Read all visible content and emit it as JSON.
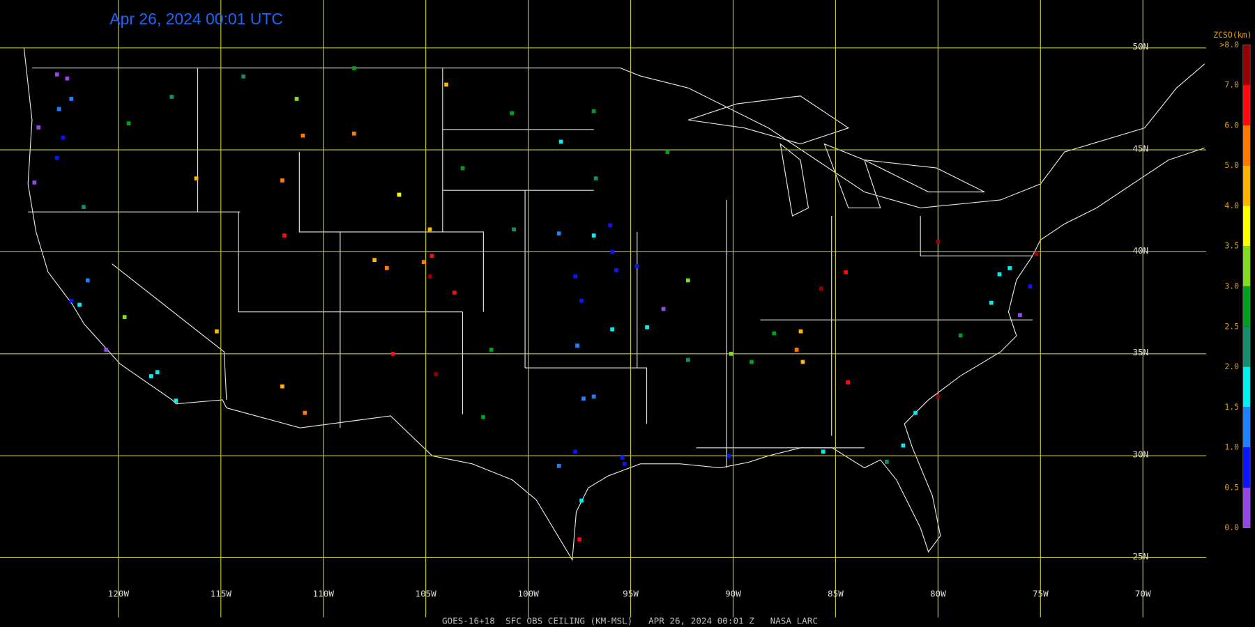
{
  "header": {
    "title": "Apr 26, 2024 00:01 UTC",
    "footer": "GOES-16+18  SFC OBS CEILING (KM-MSL)   APR 26, 2024 00:01 Z   NASA LARC"
  },
  "map": {
    "xlim": [
      -125.78,
      -64.53
    ],
    "ylim": [
      21.6,
      52.35
    ],
    "xticks": [
      {
        "value": -120,
        "label": "120W"
      },
      {
        "value": -115,
        "label": "115W"
      },
      {
        "value": -110,
        "label": "110W"
      },
      {
        "value": -105,
        "label": "105W"
      },
      {
        "value": -100,
        "label": "100W"
      },
      {
        "value": -95,
        "label": "95W"
      },
      {
        "value": -90,
        "label": "90W"
      },
      {
        "value": -85,
        "label": "85W"
      },
      {
        "value": -80,
        "label": "80W"
      },
      {
        "value": -75,
        "label": "75W"
      },
      {
        "value": -70,
        "label": "70W"
      }
    ],
    "yticks": [
      {
        "value": 50,
        "label": "50N"
      },
      {
        "value": 45,
        "label": "45N"
      },
      {
        "value": 40,
        "label": "40N"
      },
      {
        "value": 35,
        "label": "35N"
      },
      {
        "value": 30,
        "label": "30N"
      },
      {
        "value": 25,
        "label": "25N"
      }
    ],
    "grid_color": "#c8c832",
    "colorbar": {
      "title": "ZCSO(km)",
      "top_label": ">8.0",
      "ticks": [
        {
          "value": 0,
          "label": "0.0"
        },
        0.5,
        {
          "value": 1,
          "label": "1.0"
        },
        1.5,
        {
          "value": 2,
          "label": "2.0"
        },
        2.5,
        {
          "value": 3,
          "label": "3.0"
        },
        3.5,
        {
          "value": 4,
          "label": "4.0"
        },
        {
          "value": 5,
          "label": "5.0"
        },
        {
          "value": 6,
          "label": "6.0"
        },
        {
          "value": 7,
          "label": "7.0"
        }
      ],
      "colors": [
        "#9646e6",
        "#0a14ff",
        "#1e82ff",
        "#00f0f0",
        "#148c6e",
        "#00a01e",
        "#82dc1e",
        "#ffff00",
        "#ffb400",
        "#ff7800",
        "#ff0a0a",
        "#960000"
      ]
    },
    "stations": [
      {
        "lon": -122.3,
        "lat": 47.5,
        "ceiling": 1.2
      },
      {
        "lon": -122.9,
        "lat": 47.0,
        "ceiling": 1.0
      },
      {
        "lon": -123.0,
        "lat": 48.7,
        "ceiling": 0.3
      },
      {
        "lon": -122.5,
        "lat": 48.5,
        "ceiling": 0.4
      },
      {
        "lon": -123.9,
        "lat": 46.1,
        "ceiling": 0.2
      },
      {
        "lon": -122.7,
        "lat": 45.6,
        "ceiling": 0.9
      },
      {
        "lon": -123.0,
        "lat": 44.6,
        "ceiling": 0.8
      },
      {
        "lon": -124.1,
        "lat": 43.4,
        "ceiling": 0.2
      },
      {
        "lon": -121.7,
        "lat": 42.2,
        "ceiling": 2.0
      },
      {
        "lon": -117.4,
        "lat": 47.6,
        "ceiling": 2.0
      },
      {
        "lon": -119.5,
        "lat": 46.3,
        "ceiling": 2.5
      },
      {
        "lon": -116.2,
        "lat": 43.6,
        "ceiling": 4.0
      },
      {
        "lon": -112.0,
        "lat": 43.5,
        "ceiling": 5.0
      },
      {
        "lon": -111.0,
        "lat": 45.7,
        "ceiling": 5.0
      },
      {
        "lon": -108.5,
        "lat": 45.8,
        "ceiling": 5.0
      },
      {
        "lon": -106.3,
        "lat": 42.8,
        "ceiling": 3.5
      },
      {
        "lon": -104.8,
        "lat": 41.1,
        "ceiling": 4.5
      },
      {
        "lon": -104.7,
        "lat": 39.8,
        "ceiling": 6.5
      },
      {
        "lon": -104.8,
        "lat": 38.8,
        "ceiling": 7.0
      },
      {
        "lon": -106.9,
        "lat": 39.2,
        "ceiling": 5.0
      },
      {
        "lon": -105.1,
        "lat": 39.5,
        "ceiling": 5.5
      },
      {
        "lon": -107.5,
        "lat": 39.6,
        "ceiling": 4.5
      },
      {
        "lon": -103.6,
        "lat": 38.0,
        "ceiling": 6.0
      },
      {
        "lon": -111.9,
        "lat": 40.8,
        "ceiling": 6.0
      },
      {
        "lon": -115.2,
        "lat": 36.1,
        "ceiling": 4.0
      },
      {
        "lon": -112.0,
        "lat": 33.4,
        "ceiling": 4.0
      },
      {
        "lon": -110.9,
        "lat": 32.1,
        "ceiling": 5.0
      },
      {
        "lon": -106.6,
        "lat": 35.0,
        "ceiling": 6.0
      },
      {
        "lon": -104.5,
        "lat": 34.0,
        "ceiling": 7.0
      },
      {
        "lon": -122.3,
        "lat": 37.6,
        "ceiling": 0.8
      },
      {
        "lon": -121.9,
        "lat": 37.4,
        "ceiling": 1.5
      },
      {
        "lon": -121.5,
        "lat": 38.6,
        "ceiling": 1.2
      },
      {
        "lon": -119.7,
        "lat": 36.8,
        "ceiling": 3.0
      },
      {
        "lon": -118.4,
        "lat": 33.9,
        "ceiling": 1.8
      },
      {
        "lon": -117.2,
        "lat": 32.7,
        "ceiling": 1.8
      },
      {
        "lon": -118.1,
        "lat": 34.1,
        "ceiling": 1.5
      },
      {
        "lon": -120.6,
        "lat": 35.2,
        "ceiling": 0.4
      },
      {
        "lon": -96.0,
        "lat": 41.3,
        "ceiling": 0.8
      },
      {
        "lon": -95.9,
        "lat": 40.0,
        "ceiling": 0.8
      },
      {
        "lon": -97.4,
        "lat": 37.6,
        "ceiling": 0.9
      },
      {
        "lon": -95.7,
        "lat": 39.1,
        "ceiling": 0.7
      },
      {
        "lon": -94.7,
        "lat": 39.3,
        "ceiling": 0.6
      },
      {
        "lon": -98.5,
        "lat": 40.9,
        "ceiling": 1.2
      },
      {
        "lon": -100.7,
        "lat": 41.1,
        "ceiling": 2.0
      },
      {
        "lon": -97.7,
        "lat": 38.8,
        "ceiling": 0.9
      },
      {
        "lon": -96.8,
        "lat": 40.8,
        "ceiling": 1.5
      },
      {
        "lon": -96.8,
        "lat": 46.9,
        "ceiling": 2.5
      },
      {
        "lon": -100.8,
        "lat": 46.8,
        "ceiling": 2.5
      },
      {
        "lon": -103.2,
        "lat": 44.1,
        "ceiling": 2.5
      },
      {
        "lon": -98.4,
        "lat": 45.4,
        "ceiling": 1.8
      },
      {
        "lon": -96.7,
        "lat": 43.6,
        "ceiling": 2.2
      },
      {
        "lon": -97.6,
        "lat": 35.4,
        "ceiling": 1.2
      },
      {
        "lon": -95.9,
        "lat": 36.2,
        "ceiling": 1.5
      },
      {
        "lon": -97.3,
        "lat": 32.8,
        "ceiling": 1.3
      },
      {
        "lon": -96.8,
        "lat": 32.9,
        "ceiling": 1.4
      },
      {
        "lon": -97.7,
        "lat": 30.2,
        "ceiling": 0.8
      },
      {
        "lon": -98.5,
        "lat": 29.5,
        "ceiling": 1.2
      },
      {
        "lon": -95.4,
        "lat": 29.9,
        "ceiling": 0.9
      },
      {
        "lon": -95.3,
        "lat": 29.6,
        "ceiling": 0.8
      },
      {
        "lon": -97.4,
        "lat": 27.8,
        "ceiling": 1.8
      },
      {
        "lon": -101.8,
        "lat": 35.2,
        "ceiling": 2.5
      },
      {
        "lon": -102.2,
        "lat": 31.9,
        "ceiling": 2.5
      },
      {
        "lon": -97.5,
        "lat": 25.9,
        "ceiling": 6.5
      },
      {
        "lon": -93.4,
        "lat": 37.2,
        "ceiling": 0.4
      },
      {
        "lon": -92.2,
        "lat": 38.6,
        "ceiling": 3.0
      },
      {
        "lon": -94.2,
        "lat": 36.3,
        "ceiling": 1.7
      },
      {
        "lon": -92.2,
        "lat": 34.7,
        "ceiling": 2.2
      },
      {
        "lon": -90.1,
        "lat": 35.0,
        "ceiling": 3.0
      },
      {
        "lon": -89.1,
        "lat": 34.6,
        "ceiling": 2.8
      },
      {
        "lon": -88.0,
        "lat": 36.0,
        "ceiling": 2.5
      },
      {
        "lon": -86.7,
        "lat": 36.1,
        "ceiling": 4.5
      },
      {
        "lon": -86.6,
        "lat": 34.6,
        "ceiling": 4.0
      },
      {
        "lon": -84.4,
        "lat": 33.6,
        "ceiling": 6.5
      },
      {
        "lon": -81.1,
        "lat": 32.1,
        "ceiling": 1.8
      },
      {
        "lon": -80.0,
        "lat": 32.9,
        "ceiling": 7.0
      },
      {
        "lon": -86.9,
        "lat": 35.2,
        "ceiling": 5.0
      },
      {
        "lon": -77.0,
        "lat": 38.9,
        "ceiling": 1.5
      },
      {
        "lon": -76.5,
        "lat": 39.2,
        "ceiling": 1.8
      },
      {
        "lon": -75.5,
        "lat": 38.3,
        "ceiling": 0.5
      },
      {
        "lon": -76.0,
        "lat": 36.9,
        "ceiling": 0.4
      },
      {
        "lon": -77.4,
        "lat": 37.5,
        "ceiling": 1.7
      },
      {
        "lon": -75.2,
        "lat": 39.9,
        "ceiling": 7.0
      },
      {
        "lon": -78.9,
        "lat": 35.9,
        "ceiling": 2.5
      },
      {
        "lon": -81.7,
        "lat": 30.5,
        "ceiling": 1.8
      },
      {
        "lon": -82.5,
        "lat": 29.7,
        "ceiling": 2.0
      },
      {
        "lon": -85.6,
        "lat": 30.2,
        "ceiling": 1.8
      },
      {
        "lon": -85.7,
        "lat": 38.2,
        "ceiling": 7.0
      },
      {
        "lon": -84.5,
        "lat": 39.0,
        "ceiling": 6.5
      },
      {
        "lon": -80.0,
        "lat": 40.5,
        "ceiling": 7.5
      },
      {
        "lon": -104.0,
        "lat": 48.2,
        "ceiling": 4.5
      },
      {
        "lon": -113.9,
        "lat": 48.6,
        "ceiling": 2.0
      },
      {
        "lon": -111.3,
        "lat": 47.5,
        "ceiling": 3.0
      },
      {
        "lon": -108.5,
        "lat": 49.0,
        "ceiling": 2.5
      },
      {
        "lon": -93.2,
        "lat": 44.9,
        "ceiling": 2.5
      },
      {
        "lon": -90.2,
        "lat": 30.0,
        "ceiling": 0.9
      }
    ]
  }
}
